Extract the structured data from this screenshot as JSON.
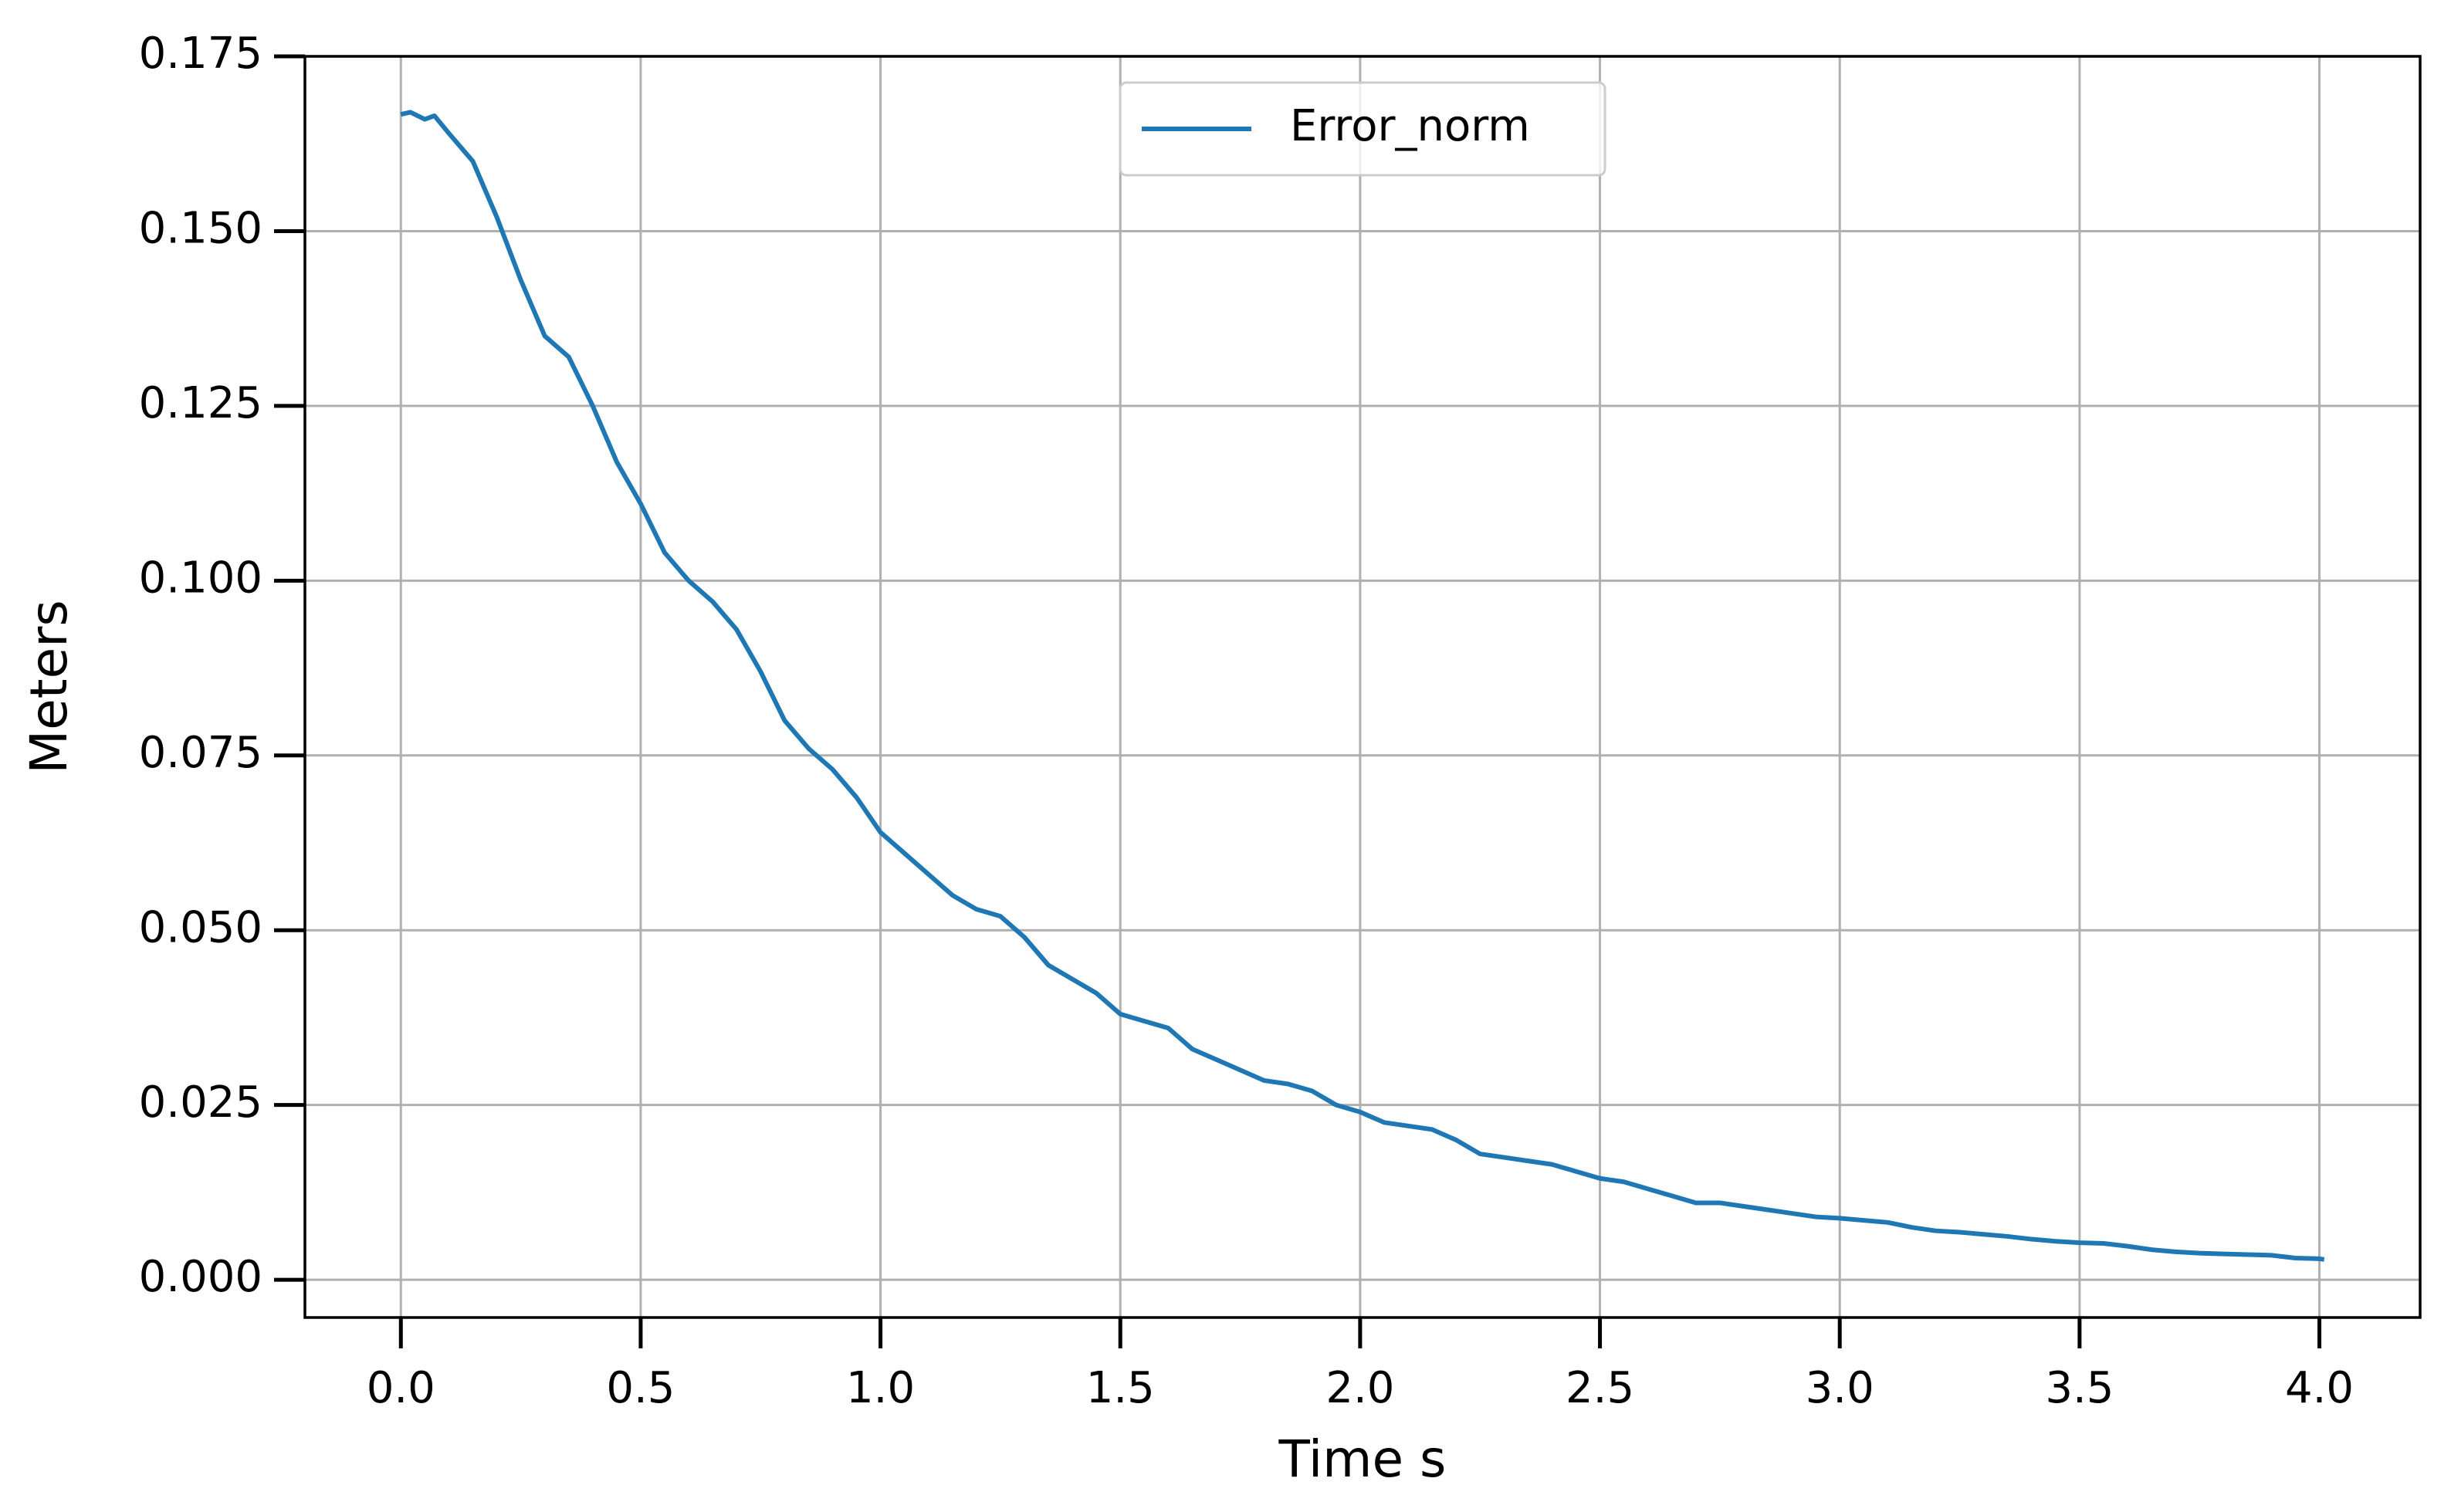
{
  "chart_data": {
    "type": "line",
    "xlabel": "Time s",
    "ylabel": "Meters",
    "x": [
      0,
      0.02,
      0.05,
      0.07,
      0.1,
      0.15,
      0.2,
      0.25,
      0.3,
      0.35,
      0.4,
      0.45,
      0.5,
      0.55,
      0.6,
      0.65,
      0.7,
      0.75,
      0.8,
      0.85,
      0.9,
      0.95,
      1.0,
      1.05,
      1.1,
      1.15,
      1.2,
      1.25,
      1.3,
      1.35,
      1.4,
      1.45,
      1.5,
      1.55,
      1.6,
      1.65,
      1.7,
      1.75,
      1.8,
      1.85,
      1.9,
      1.95,
      2.0,
      2.05,
      2.1,
      2.15,
      2.2,
      2.25,
      2.3,
      2.35,
      2.4,
      2.45,
      2.5,
      2.55,
      2.6,
      2.65,
      2.7,
      2.75,
      2.8,
      2.85,
      2.9,
      2.95,
      3.0,
      3.05,
      3.1,
      3.15,
      3.2,
      3.25,
      3.3,
      3.35,
      3.4,
      3.45,
      3.5,
      3.55,
      3.6,
      3.65,
      3.7,
      3.75,
      3.8,
      3.85,
      3.9,
      3.95,
      4.0,
      4.01
    ],
    "series": [
      {
        "name": "Error_norm",
        "color": "#1f77b4",
        "values": [
          0.1667,
          0.167,
          0.166,
          0.1665,
          0.164,
          0.16,
          0.152,
          0.143,
          0.135,
          0.132,
          0.125,
          0.117,
          0.111,
          0.104,
          0.1,
          0.097,
          0.093,
          0.087,
          0.08,
          0.076,
          0.073,
          0.069,
          0.064,
          0.061,
          0.058,
          0.055,
          0.053,
          0.052,
          0.049,
          0.045,
          0.043,
          0.041,
          0.038,
          0.037,
          0.036,
          0.033,
          0.0315,
          0.03,
          0.0285,
          0.028,
          0.027,
          0.025,
          0.024,
          0.0225,
          0.022,
          0.0215,
          0.02,
          0.018,
          0.0175,
          0.017,
          0.0165,
          0.0155,
          0.0145,
          0.014,
          0.013,
          0.012,
          0.011,
          0.011,
          0.0105,
          0.01,
          0.0095,
          0.009,
          0.0088,
          0.0085,
          0.0082,
          0.0075,
          0.007,
          0.0068,
          0.0065,
          0.0062,
          0.0058,
          0.0055,
          0.0053,
          0.0052,
          0.0048,
          0.0043,
          0.004,
          0.0038,
          0.0037,
          0.0036,
          0.0035,
          0.0031,
          0.003,
          0.0029
        ]
      }
    ],
    "xlim": [
      -0.2,
      4.21
    ],
    "ylim": [
      -0.0054,
      0.175
    ],
    "xticks": [
      {
        "value": 0,
        "label": "0.0"
      },
      0.5,
      {
        "value": 1,
        "label": "1.0"
      },
      1.5,
      {
        "value": 2,
        "label": "2.0"
      },
      2.5,
      {
        "value": 3,
        "label": "3.0"
      },
      3.5,
      {
        "value": 4,
        "label": "4.0"
      }
    ],
    "yticks": [
      {
        "value": 0,
        "label": "0.000"
      },
      {
        "value": 0.025,
        "label": "0.025"
      },
      {
        "value": 0.05,
        "label": "0.050"
      },
      {
        "value": 0.075,
        "label": "0.075"
      },
      {
        "value": 0.1,
        "label": "0.100"
      },
      {
        "value": 0.125,
        "label": "0.125"
      },
      {
        "value": 0.15,
        "label": "0.150"
      },
      {
        "value": 0.175,
        "label": "0.175"
      }
    ],
    "grid": true,
    "legend": "upper center"
  }
}
